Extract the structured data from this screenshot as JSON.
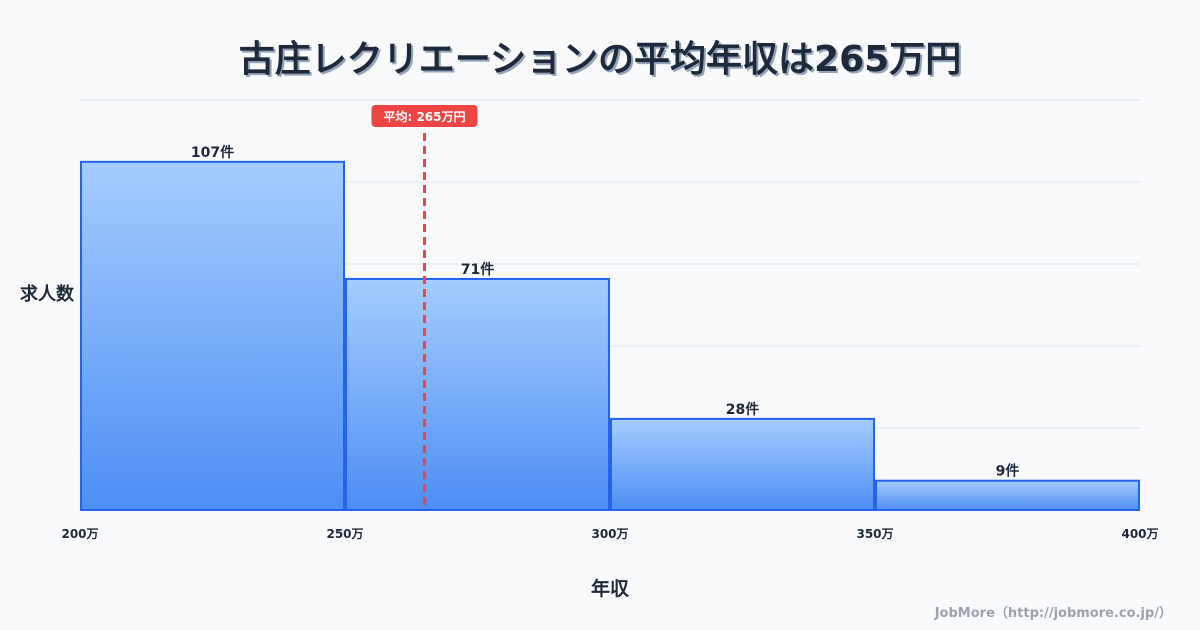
{
  "chart_data": {
    "type": "bar",
    "title": "古庄レクリエーションの平均年収は265万円",
    "xlabel": "年収",
    "ylabel": "求人数",
    "bins": [
      [
        200,
        250
      ],
      [
        250,
        300
      ],
      [
        300,
        350
      ],
      [
        350,
        400
      ]
    ],
    "values": [
      107,
      71,
      28,
      9
    ],
    "value_labels": [
      "107件",
      "71件",
      "28件",
      "9件"
    ],
    "x_ticks": [
      200,
      250,
      300,
      350,
      400
    ],
    "x_tick_labels": [
      "200万",
      "250万",
      "300万",
      "350万",
      "400万"
    ],
    "xlim": [
      200,
      400
    ],
    "ylim": [
      0,
      126
    ],
    "grid": true,
    "average": {
      "value": 265,
      "label": "平均: 265万円"
    },
    "colors": {
      "bar_top": "#a5cdfd",
      "bar_bottom": "#4d8ef5",
      "bar_stroke": "#2563eb",
      "average_line": "#ef4444"
    }
  },
  "credit": "JobMore（http://jobmore.co.jp/）"
}
